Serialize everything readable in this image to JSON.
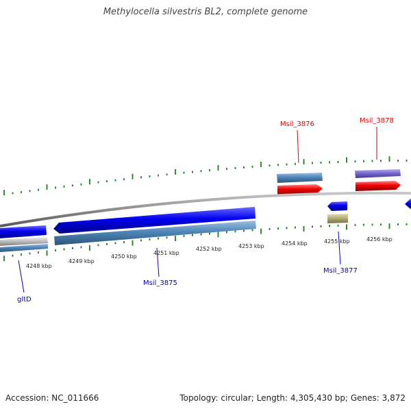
{
  "title": "Methylocella silvestris BL2, complete genome",
  "footer": {
    "accession": "Accession: NC_011666",
    "summary": "Topology: circular; Length: 4,305,430 bp; Genes: 3,872"
  },
  "colors": {
    "backbone": "#8c8c8c",
    "tick": "#2e8b2e",
    "forward_label": "#dd0000",
    "reverse_label": "#0000bb",
    "cds_blue": "#0000ee",
    "gene_steel": "#4f86b8",
    "cds_red": "#ee0000",
    "gene_purple": "#7b68d0",
    "gene_olive": "#b8b07a",
    "gene_grey": "#c0c0c0"
  },
  "scale_labels": [
    "4248 kbp",
    "4249 kbp",
    "4250 kbp",
    "4251 kbp",
    "4252 kbp",
    "4253 kbp",
    "4254 kbp",
    "4255 kbp",
    "4256 kbp"
  ],
  "gene_labels": [
    {
      "id": "gltD",
      "strand": "reverse"
    },
    {
      "id": "Msil_3875",
      "strand": "reverse"
    },
    {
      "id": "Msil_3876",
      "strand": "forward"
    },
    {
      "id": "Msil_3877",
      "strand": "reverse"
    },
    {
      "id": "Msil_3878",
      "strand": "forward"
    }
  ]
}
